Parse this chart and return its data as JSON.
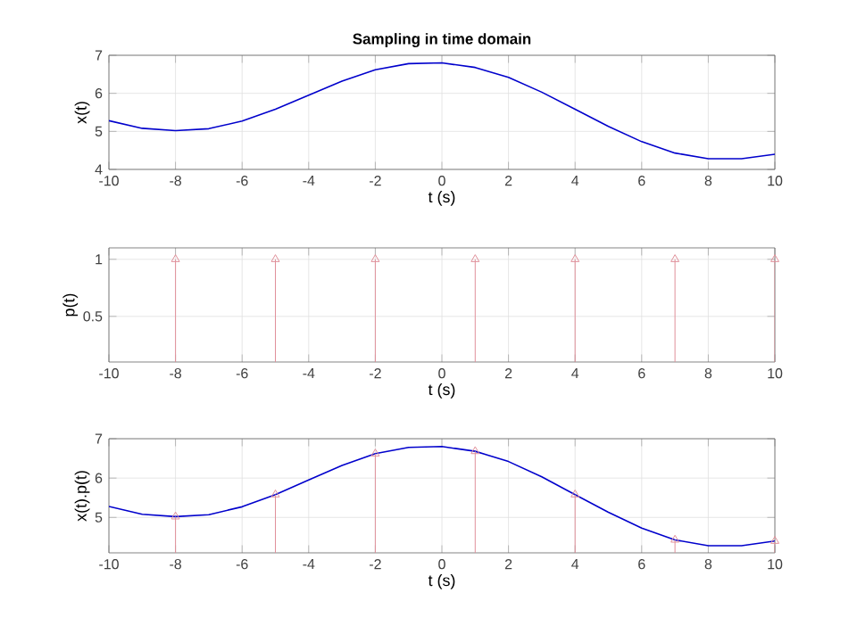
{
  "chart_data": [
    {
      "type": "line",
      "title": "Sampling in time domain",
      "xlabel": "t (s)",
      "ylabel": "x(t)",
      "x": [
        -10,
        -9,
        -8,
        -7,
        -6,
        -5,
        -4,
        -3,
        -2,
        -1,
        0,
        1,
        2,
        3,
        4,
        5,
        6,
        7,
        8,
        9,
        10
      ],
      "values": [
        5.28,
        5.08,
        5.02,
        5.07,
        5.27,
        5.58,
        5.95,
        6.32,
        6.62,
        6.78,
        6.8,
        6.68,
        6.42,
        6.03,
        5.58,
        5.13,
        4.73,
        4.43,
        4.28,
        4.28,
        4.4
      ],
      "color": "#0000cc",
      "xlim": [
        -10,
        10
      ],
      "ylim": [
        4,
        7
      ],
      "xticks": [
        -10,
        -8,
        -6,
        -4,
        -2,
        0,
        2,
        4,
        6,
        8,
        10
      ],
      "yticks": [
        4,
        5,
        6,
        7
      ],
      "grid": true
    },
    {
      "type": "lollipop",
      "xlabel": "t (s)",
      "ylabel": "p(t)",
      "x": [
        -8,
        -5,
        -2,
        1,
        4,
        7,
        10
      ],
      "values": [
        1,
        1,
        1,
        1,
        1,
        1,
        1
      ],
      "color": "#e0909a",
      "marker": "triangle",
      "xlim": [
        -10,
        10
      ],
      "ylim": [
        0.1,
        1.1
      ],
      "xticks": [
        -10,
        -8,
        -6,
        -4,
        -2,
        0,
        2,
        4,
        6,
        8,
        10
      ],
      "yticks": [
        0.5,
        1
      ],
      "grid": true
    },
    {
      "type": "line",
      "xlabel": "t (s)",
      "ylabel": "x(t).p(t)",
      "series": [
        {
          "type": "line",
          "color": "#0000cc",
          "x": [
            -10,
            -9,
            -8,
            -7,
            -6,
            -5,
            -4,
            -3,
            -2,
            -1,
            0,
            1,
            2,
            3,
            4,
            5,
            6,
            7,
            8,
            9,
            10
          ],
          "values": [
            5.28,
            5.08,
            5.02,
            5.07,
            5.27,
            5.58,
            5.95,
            6.32,
            6.62,
            6.78,
            6.8,
            6.68,
            6.42,
            6.03,
            5.58,
            5.13,
            4.73,
            4.43,
            4.28,
            4.28,
            4.4
          ]
        },
        {
          "type": "lollipop",
          "color": "#e0909a",
          "marker": "triangle",
          "x": [
            -8,
            -5,
            -2,
            1,
            4,
            7,
            10
          ],
          "values": [
            5.02,
            5.58,
            6.62,
            6.68,
            5.58,
            4.43,
            4.4
          ]
        }
      ],
      "xlim": [
        -10,
        10
      ],
      "ylim": [
        4.1,
        7
      ],
      "xticks": [
        -10,
        -8,
        -6,
        -4,
        -2,
        0,
        2,
        4,
        6,
        8,
        10
      ],
      "yticks": [
        5,
        6,
        7
      ],
      "grid": true
    }
  ]
}
